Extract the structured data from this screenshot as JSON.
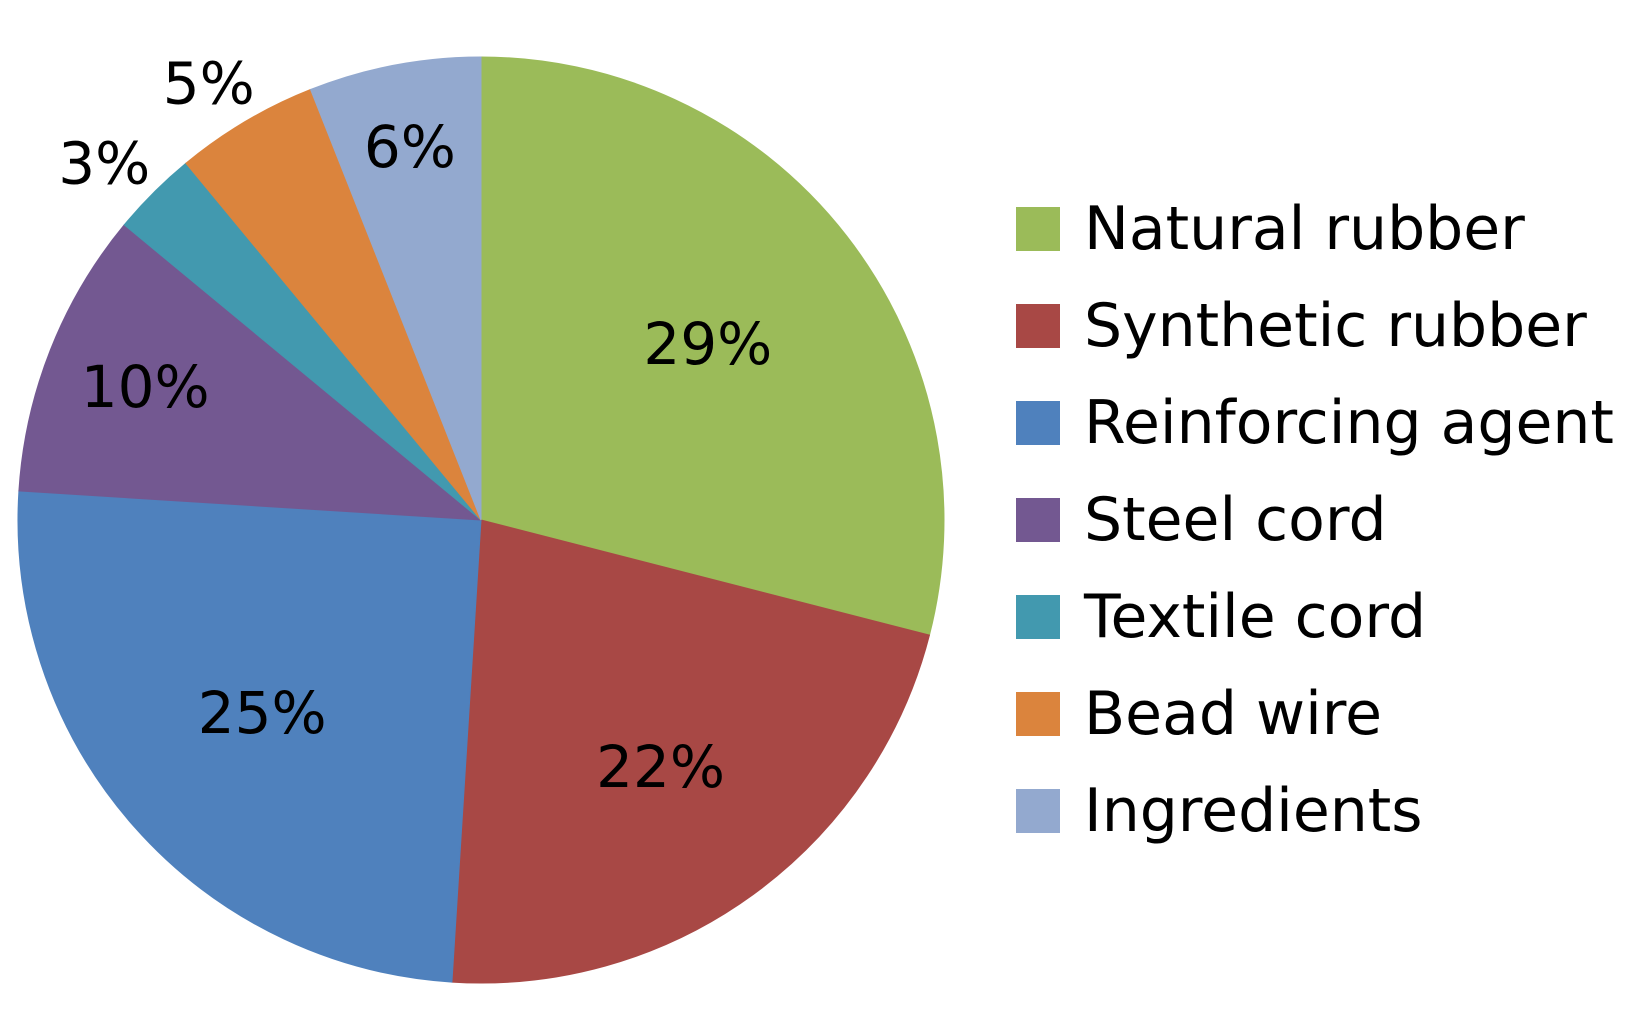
{
  "chart_data": {
    "type": "pie",
    "title": "",
    "categories": [
      "Natural rubber",
      "Synthetic rubber",
      "Reinforcing agent",
      "Steel cord",
      "Textile cord",
      "Bead wire",
      "Ingredients"
    ],
    "values": [
      29,
      22,
      25,
      10,
      3,
      5,
      6
    ],
    "labels": [
      "29%",
      "22%",
      "25%",
      "10%",
      "3%",
      "5%",
      "6%"
    ],
    "colors": [
      "#9BBB59",
      "#A84845",
      "#4F81BD",
      "#735891",
      "#4299AF",
      "#DB843D",
      "#93A9CF"
    ],
    "start": "12 o'clock",
    "direction": "clockwise",
    "legend_position": "right"
  }
}
